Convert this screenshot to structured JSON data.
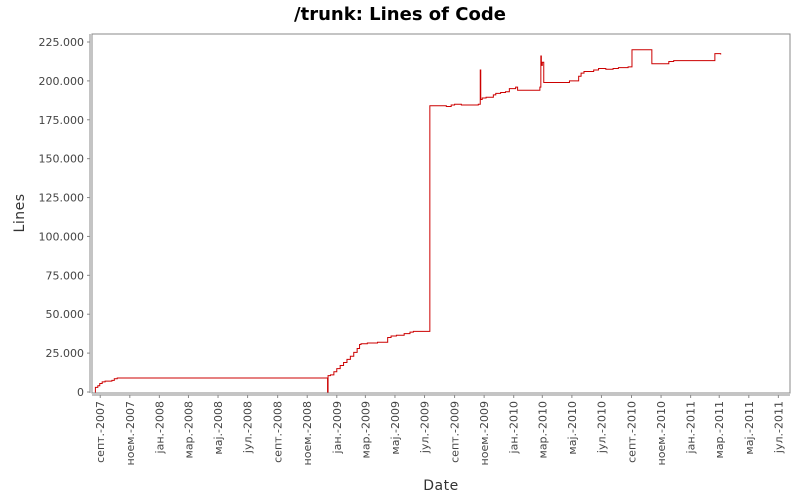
{
  "chart_data": {
    "type": "line",
    "title": "/trunk: Lines of Code",
    "xlabel": "Date",
    "ylabel": "Lines",
    "ylim": [
      0,
      232000
    ],
    "xlim": [
      "2007-08-15",
      "2011-07-25"
    ],
    "y_ticks": [
      {
        "value": 0,
        "label": "0"
      },
      {
        "value": 25000,
        "label": "25.000"
      },
      {
        "value": 50000,
        "label": "50.000"
      },
      {
        "value": 75000,
        "label": "75.000"
      },
      {
        "value": 100000,
        "label": "100.000"
      },
      {
        "value": 125000,
        "label": "125.000"
      },
      {
        "value": 150000,
        "label": "150.000"
      },
      {
        "value": 175000,
        "label": "175.000"
      },
      {
        "value": 200000,
        "label": "200.000"
      },
      {
        "value": 225000,
        "label": "225.000"
      }
    ],
    "x_ticks": [
      {
        "date": "2007-09-01",
        "label": "септ.-2007"
      },
      {
        "date": "2007-11-01",
        "label": "ноем.-2007"
      },
      {
        "date": "2008-01-01",
        "label": "јан.-2008"
      },
      {
        "date": "2008-03-01",
        "label": "мар.-2008"
      },
      {
        "date": "2008-05-01",
        "label": "мај.-2008"
      },
      {
        "date": "2008-07-01",
        "label": "јул.-2008"
      },
      {
        "date": "2008-09-01",
        "label": "септ.-2008"
      },
      {
        "date": "2008-11-01",
        "label": "ноем.-2008"
      },
      {
        "date": "2009-01-01",
        "label": "јан.-2009"
      },
      {
        "date": "2009-03-01",
        "label": "мар.-2009"
      },
      {
        "date": "2009-05-01",
        "label": "мај.-2009"
      },
      {
        "date": "2009-07-01",
        "label": "јул.-2009"
      },
      {
        "date": "2009-09-01",
        "label": "септ.-2009"
      },
      {
        "date": "2009-11-01",
        "label": "ноем.-2009"
      },
      {
        "date": "2010-01-01",
        "label": "јан.-2010"
      },
      {
        "date": "2010-03-01",
        "label": "мар.-2010"
      },
      {
        "date": "2010-05-01",
        "label": "мај.-2010"
      },
      {
        "date": "2010-07-01",
        "label": "јул.-2010"
      },
      {
        "date": "2010-09-01",
        "label": "септ.-2010"
      },
      {
        "date": "2010-11-01",
        "label": "ноем.-2010"
      },
      {
        "date": "2011-01-01",
        "label": "јан.-2011"
      },
      {
        "date": "2011-03-01",
        "label": "мар.-2011"
      },
      {
        "date": "2011-05-01",
        "label": "мај.-2011"
      },
      {
        "date": "2011-07-01",
        "label": "јул.-2011"
      }
    ],
    "grid": false,
    "series": [
      {
        "color": "#cc0000",
        "step": true,
        "points": [
          [
            "2007-08-21",
            0
          ],
          [
            "2007-08-22",
            3000
          ],
          [
            "2007-08-27",
            4000
          ],
          [
            "2007-08-31",
            5500
          ],
          [
            "2007-09-05",
            6500
          ],
          [
            "2007-09-11",
            7000
          ],
          [
            "2007-09-25",
            7500
          ],
          [
            "2007-09-30",
            8500
          ],
          [
            "2007-10-06",
            9000
          ],
          [
            "2008-12-12",
            9000
          ],
          [
            "2008-12-13",
            0
          ],
          [
            "2008-12-14",
            10500
          ],
          [
            "2008-12-19",
            11000
          ],
          [
            "2008-12-26",
            13000
          ],
          [
            "2009-01-01",
            15000
          ],
          [
            "2009-01-08",
            17000
          ],
          [
            "2009-01-15",
            19000
          ],
          [
            "2009-01-22",
            21000
          ],
          [
            "2009-01-29",
            23000
          ],
          [
            "2009-02-05",
            25500
          ],
          [
            "2009-02-12",
            28000
          ],
          [
            "2009-02-17",
            30500
          ],
          [
            "2009-02-20",
            31000
          ],
          [
            "2009-03-05",
            31500
          ],
          [
            "2009-03-26",
            32000
          ],
          [
            "2009-04-15",
            32000
          ],
          [
            "2009-04-16",
            35000
          ],
          [
            "2009-04-23",
            36000
          ],
          [
            "2009-05-04",
            36500
          ],
          [
            "2009-05-20",
            37500
          ],
          [
            "2009-06-01",
            38500
          ],
          [
            "2009-06-08",
            39000
          ],
          [
            "2009-07-11",
            39000
          ],
          [
            "2009-07-12",
            184000
          ],
          [
            "2009-08-15",
            183500
          ],
          [
            "2009-08-25",
            184500
          ],
          [
            "2009-09-01",
            185000
          ],
          [
            "2009-09-15",
            184500
          ],
          [
            "2009-10-20",
            185000
          ],
          [
            "2009-10-24",
            207000
          ],
          [
            "2009-10-25",
            188000
          ],
          [
            "2009-10-28",
            189000
          ],
          [
            "2009-11-05",
            189500
          ],
          [
            "2009-11-20",
            191000
          ],
          [
            "2009-11-25",
            192000
          ],
          [
            "2009-12-05",
            192500
          ],
          [
            "2009-12-15",
            193000
          ],
          [
            "2009-12-23",
            195000
          ],
          [
            "2010-01-05",
            196000
          ],
          [
            "2010-01-09",
            194000
          ],
          [
            "2010-02-20",
            194000
          ],
          [
            "2010-02-24",
            196000
          ],
          [
            "2010-02-26",
            216000
          ],
          [
            "2010-02-27",
            210000
          ],
          [
            "2010-03-01",
            212000
          ],
          [
            "2010-03-04",
            199000
          ],
          [
            "2010-04-25",
            199000
          ],
          [
            "2010-04-26",
            200000
          ],
          [
            "2010-05-12",
            200000
          ],
          [
            "2010-05-15",
            203000
          ],
          [
            "2010-05-20",
            205000
          ],
          [
            "2010-05-26",
            206000
          ],
          [
            "2010-06-15",
            207000
          ],
          [
            "2010-06-25",
            208000
          ],
          [
            "2010-07-10",
            207500
          ],
          [
            "2010-07-25",
            208000
          ],
          [
            "2010-08-05",
            208500
          ],
          [
            "2010-08-25",
            209000
          ],
          [
            "2010-09-02",
            220000
          ],
          [
            "2010-10-12",
            220000
          ],
          [
            "2010-10-13",
            211000
          ],
          [
            "2010-11-15",
            211000
          ],
          [
            "2010-11-17",
            212500
          ],
          [
            "2010-11-27",
            213000
          ],
          [
            "2011-02-18",
            213000
          ],
          [
            "2011-02-20",
            217500
          ],
          [
            "2011-03-04",
            217000
          ]
        ]
      }
    ]
  }
}
